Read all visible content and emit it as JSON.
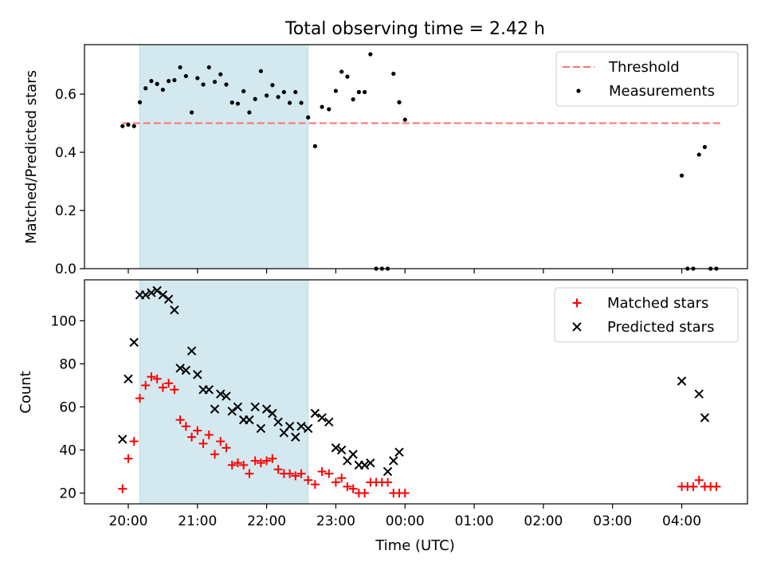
{
  "title": "Total observing time = 2.42 h",
  "colors": {
    "threshold": "#ff7070",
    "measurement": "#000000",
    "matched": "#ff0000",
    "predicted": "#000000",
    "observing_span": "#d3e9ef"
  },
  "chart_data": [
    {
      "type": "scatter",
      "ylabel": "Matched/Predicted stars",
      "xlabel": "",
      "ylim": [
        0,
        0.77
      ],
      "yticks": [
        "0.0",
        "0.2",
        "0.4",
        "0.6"
      ],
      "grid": false,
      "legend_position": "top-right",
      "legend": [
        "Threshold",
        "Measurements"
      ],
      "threshold": {
        "name": "Threshold",
        "value": 0.5,
        "x_range": [
          "19:55",
          "04:35"
        ]
      },
      "observing_span": [
        "20:10",
        "22:36"
      ],
      "series": [
        {
          "name": "Measurements",
          "points": [
            [
              "19:55",
              0.49
            ],
            [
              "20:00",
              0.495
            ],
            [
              "20:05",
              0.49
            ],
            [
              "20:10",
              0.572
            ],
            [
              "20:15",
              0.62
            ],
            [
              "20:20",
              0.645
            ],
            [
              "20:25",
              0.635
            ],
            [
              "20:30",
              0.615
            ],
            [
              "20:35",
              0.645
            ],
            [
              "20:40",
              0.648
            ],
            [
              "20:45",
              0.692
            ],
            [
              "20:50",
              0.662
            ],
            [
              "20:55",
              0.537
            ],
            [
              "21:00",
              0.655
            ],
            [
              "21:05",
              0.633
            ],
            [
              "21:10",
              0.692
            ],
            [
              "21:15",
              0.642
            ],
            [
              "21:20",
              0.668
            ],
            [
              "21:25",
              0.633
            ],
            [
              "21:30",
              0.571
            ],
            [
              "21:35",
              0.567
            ],
            [
              "21:40",
              0.61
            ],
            [
              "21:45",
              0.537
            ],
            [
              "21:50",
              0.583
            ],
            [
              "21:55",
              0.679
            ],
            [
              "22:00",
              0.595
            ],
            [
              "22:05",
              0.631
            ],
            [
              "22:10",
              0.59
            ],
            [
              "22:15",
              0.607
            ],
            [
              "22:20",
              0.57
            ],
            [
              "22:25",
              0.607
            ],
            [
              "22:30",
              0.57
            ],
            [
              "22:36",
              0.52
            ],
            [
              "22:42",
              0.421
            ],
            [
              "22:48",
              0.556
            ],
            [
              "22:54",
              0.548
            ],
            [
              "23:00",
              0.611
            ],
            [
              "23:05",
              0.677
            ],
            [
              "23:10",
              0.66
            ],
            [
              "23:15",
              0.582
            ],
            [
              "23:20",
              0.607
            ],
            [
              "23:25",
              0.607
            ],
            [
              "23:30",
              0.737
            ],
            [
              "23:35",
              0.0
            ],
            [
              "23:40",
              0.0
            ],
            [
              "23:45",
              0.0
            ],
            [
              "23:50",
              0.67
            ],
            [
              "23:55",
              0.572
            ],
            [
              "00:00",
              0.512
            ],
            [
              "04:00",
              0.32
            ],
            [
              "04:05",
              0.0
            ],
            [
              "04:10",
              0.0
            ],
            [
              "04:15",
              0.392
            ],
            [
              "04:20",
              0.418
            ],
            [
              "04:25",
              0.0
            ],
            [
              "04:30",
              0.0
            ]
          ]
        }
      ]
    },
    {
      "type": "scatter",
      "ylabel": "Count",
      "xlabel": "Time (UTC)",
      "ylim": [
        15,
        119
      ],
      "yticks": [
        "20",
        "40",
        "60",
        "80",
        "100"
      ],
      "xlim": [
        "19:22",
        "04:57"
      ],
      "xticks": [
        "20:00",
        "21:00",
        "22:00",
        "23:00",
        "00:00",
        "01:00",
        "02:00",
        "03:00",
        "04:00"
      ],
      "grid": false,
      "legend_position": "top-right",
      "legend": [
        "Matched stars",
        "Predicted stars"
      ],
      "observing_span": [
        "20:10",
        "22:36"
      ],
      "series": [
        {
          "name": "Matched stars",
          "points": [
            [
              "19:55",
              22
            ],
            [
              "20:00",
              36
            ],
            [
              "20:05",
              44
            ],
            [
              "20:10",
              64
            ],
            [
              "20:15",
              70
            ],
            [
              "20:20",
              74
            ],
            [
              "20:25",
              73
            ],
            [
              "20:30",
              69
            ],
            [
              "20:35",
              71
            ],
            [
              "20:40",
              68
            ],
            [
              "20:45",
              54
            ],
            [
              "20:50",
              51
            ],
            [
              "20:55",
              46
            ],
            [
              "21:00",
              49
            ],
            [
              "21:05",
              43
            ],
            [
              "21:10",
              47
            ],
            [
              "21:15",
              38
            ],
            [
              "21:20",
              44
            ],
            [
              "21:25",
              41
            ],
            [
              "21:30",
              33
            ],
            [
              "21:35",
              34
            ],
            [
              "21:40",
              33
            ],
            [
              "21:45",
              29
            ],
            [
              "21:50",
              35
            ],
            [
              "21:55",
              34
            ],
            [
              "22:00",
              35
            ],
            [
              "22:05",
              36
            ],
            [
              "22:10",
              31
            ],
            [
              "22:15",
              29
            ],
            [
              "22:20",
              29
            ],
            [
              "22:25",
              28
            ],
            [
              "22:30",
              29
            ],
            [
              "22:36",
              26
            ],
            [
              "22:42",
              24
            ],
            [
              "22:48",
              30
            ],
            [
              "22:54",
              29
            ],
            [
              "23:00",
              25
            ],
            [
              "23:05",
              27
            ],
            [
              "23:10",
              23
            ],
            [
              "23:15",
              22
            ],
            [
              "23:20",
              20
            ],
            [
              "23:25",
              20
            ],
            [
              "23:30",
              25
            ],
            [
              "23:35",
              25
            ],
            [
              "23:40",
              25
            ],
            [
              "23:45",
              25
            ],
            [
              "23:50",
              20
            ],
            [
              "23:55",
              20
            ],
            [
              "00:00",
              20
            ],
            [
              "04:00",
              23
            ],
            [
              "04:05",
              23
            ],
            [
              "04:10",
              23
            ],
            [
              "04:15",
              26
            ],
            [
              "04:20",
              23
            ],
            [
              "04:25",
              23
            ],
            [
              "04:30",
              23
            ]
          ]
        },
        {
          "name": "Predicted stars",
          "points": [
            [
              "19:55",
              45
            ],
            [
              "20:00",
              73
            ],
            [
              "20:05",
              90
            ],
            [
              "20:10",
              112
            ],
            [
              "20:15",
              112
            ],
            [
              "20:20",
              113
            ],
            [
              "20:25",
              114
            ],
            [
              "20:30",
              112
            ],
            [
              "20:35",
              110
            ],
            [
              "20:40",
              105
            ],
            [
              "20:45",
              78
            ],
            [
              "20:50",
              77
            ],
            [
              "20:55",
              86
            ],
            [
              "21:00",
              75
            ],
            [
              "21:05",
              68
            ],
            [
              "21:10",
              68
            ],
            [
              "21:15",
              59
            ],
            [
              "21:20",
              66
            ],
            [
              "21:25",
              65
            ],
            [
              "21:30",
              58
            ],
            [
              "21:35",
              60
            ],
            [
              "21:40",
              54
            ],
            [
              "21:45",
              54
            ],
            [
              "21:50",
              60
            ],
            [
              "21:55",
              50
            ],
            [
              "22:00",
              59
            ],
            [
              "22:05",
              57
            ],
            [
              "22:10",
              53
            ],
            [
              "22:15",
              48
            ],
            [
              "22:20",
              51
            ],
            [
              "22:25",
              46
            ],
            [
              "22:30",
              51
            ],
            [
              "22:36",
              50
            ],
            [
              "22:42",
              57
            ],
            [
              "22:48",
              55
            ],
            [
              "22:54",
              53
            ],
            [
              "23:00",
              41
            ],
            [
              "23:05",
              40
            ],
            [
              "23:10",
              35
            ],
            [
              "23:15",
              38
            ],
            [
              "23:20",
              33
            ],
            [
              "23:25",
              33
            ],
            [
              "23:30",
              34
            ],
            [
              "23:45",
              30
            ],
            [
              "23:50",
              35
            ],
            [
              "23:55",
              39
            ],
            [
              "04:00",
              72
            ],
            [
              "04:15",
              66
            ],
            [
              "04:20",
              55
            ]
          ]
        }
      ]
    }
  ]
}
